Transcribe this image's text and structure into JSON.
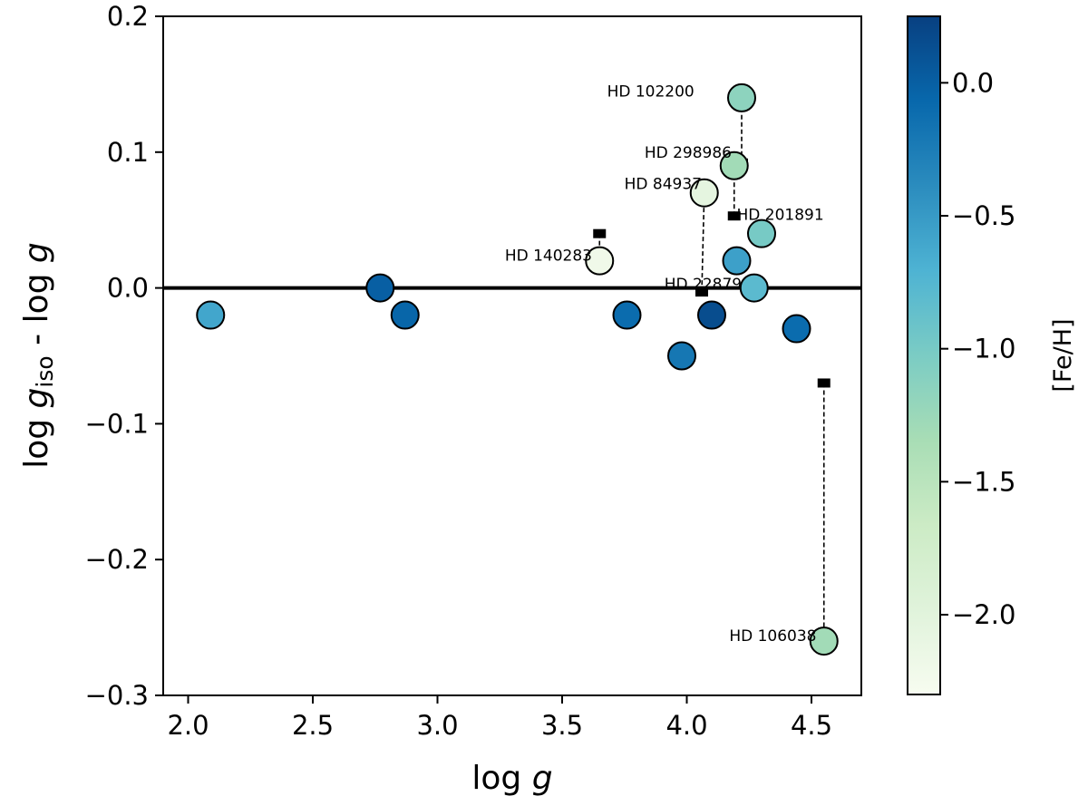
{
  "chart_data": {
    "type": "scatter",
    "title": "",
    "xlabel_parts": [
      "log ",
      "g"
    ],
    "ylabel_parts": [
      "log ",
      "g",
      "iso",
      " - log ",
      "g"
    ],
    "xlim": [
      1.9,
      4.7
    ],
    "ylim": [
      -0.3,
      0.2
    ],
    "xticks": [
      2.0,
      2.5,
      3.0,
      3.5,
      4.0,
      4.5
    ],
    "xtick_labels": [
      "2.0",
      "2.5",
      "3.0",
      "3.5",
      "4.0",
      "4.5"
    ],
    "yticks": [
      0.2,
      0.1,
      0.0,
      -0.1,
      -0.2,
      -0.3
    ],
    "ytick_labels": [
      "0.2",
      "0.1",
      "0.0",
      "−0.1",
      "−0.2",
      "−0.3"
    ],
    "reference_line_y": 0.0,
    "grid": false,
    "colorbar": {
      "label": "[Fe/H]",
      "range": [
        -2.3,
        0.25
      ],
      "ticks": [
        0.0,
        -0.5,
        -1.0,
        -1.5,
        -2.0
      ],
      "tick_labels": [
        "0.0",
        "−0.5",
        "−1.0",
        "−1.5",
        "−2.0"
      ],
      "colormap": "GnBu",
      "stops": [
        "#f7fcf0",
        "#e0f3db",
        "#ccebc5",
        "#a8ddb5",
        "#7bccc4",
        "#4eb3d3",
        "#2b8cbe",
        "#0868ac",
        "#084081"
      ]
    },
    "points": [
      {
        "x": 2.09,
        "y": -0.02,
        "feh": -0.6
      },
      {
        "x": 2.77,
        "y": 0.0,
        "feh": 0.0
      },
      {
        "x": 2.87,
        "y": -0.02,
        "feh": -0.05
      },
      {
        "x": 3.65,
        "y": 0.02,
        "feh": -2.2,
        "name": "HD 140283"
      },
      {
        "x": 3.76,
        "y": -0.02,
        "feh": -0.1
      },
      {
        "x": 3.98,
        "y": -0.05,
        "feh": -0.2
      },
      {
        "x": 4.07,
        "y": 0.07,
        "feh": -2.05,
        "name": "HD 84937"
      },
      {
        "x": 4.1,
        "y": -0.02,
        "feh": 0.15
      },
      {
        "x": 4.19,
        "y": 0.09,
        "feh": -1.3,
        "name": "HD 298986"
      },
      {
        "x": 4.2,
        "y": 0.02,
        "feh": -0.55
      },
      {
        "x": 4.22,
        "y": 0.14,
        "feh": -1.15,
        "name": "HD 102200"
      },
      {
        "x": 4.27,
        "y": 0.0,
        "feh": -0.8,
        "name": "HD 22879"
      },
      {
        "x": 4.3,
        "y": 0.04,
        "feh": -1.0,
        "name": "HD 201891"
      },
      {
        "x": 4.44,
        "y": -0.03,
        "feh": -0.1
      },
      {
        "x": 4.55,
        "y": -0.26,
        "feh": -1.3,
        "name": "HD 106038"
      }
    ],
    "markers": [
      {
        "name": "HD 140283",
        "x": 3.65,
        "y": 0.04
      },
      {
        "name": "HD 84937",
        "x": 4.06,
        "y": -0.003
      },
      {
        "name": "HD 298986",
        "x": 4.19,
        "y": 0.053
      },
      {
        "name": "HD 102200",
        "x": 4.22,
        "y": 0.092
      },
      {
        "name": "HD 201891",
        "x": 4.3,
        "y": 0.046
      },
      {
        "name": "HD 106038",
        "x": 4.55,
        "y": -0.07
      }
    ],
    "connectors": [
      {
        "name": "HD 140283",
        "x1": 3.65,
        "y1": 0.04,
        "x2": 3.65,
        "y2": 0.02
      },
      {
        "name": "HD 84937",
        "x1": 4.06,
        "y1": -0.003,
        "x2": 4.07,
        "y2": 0.07
      },
      {
        "name": "HD 298986",
        "x1": 4.19,
        "y1": 0.053,
        "x2": 4.19,
        "y2": 0.09
      },
      {
        "name": "HD 102200",
        "x1": 4.22,
        "y1": 0.092,
        "x2": 4.22,
        "y2": 0.14
      },
      {
        "name": "HD 106038",
        "x1": 4.55,
        "y1": -0.07,
        "x2": 4.55,
        "y2": -0.26
      }
    ],
    "annotations": [
      {
        "text": "HD 102200",
        "x": 4.03,
        "y": 0.145,
        "anchor": "end"
      },
      {
        "text": "HD 298986",
        "x": 4.18,
        "y": 0.1,
        "anchor": "end"
      },
      {
        "text": "HD 84937",
        "x": 4.06,
        "y": 0.077,
        "anchor": "end"
      },
      {
        "text": "HD 201891",
        "x": 4.2,
        "y": 0.054,
        "anchor": "start"
      },
      {
        "text": "HD 140283",
        "x": 3.62,
        "y": 0.024,
        "anchor": "end"
      },
      {
        "text": "HD 22879",
        "x": 3.91,
        "y": 0.003,
        "anchor": "start"
      },
      {
        "text": "HD 106038",
        "x": 4.52,
        "y": -0.256,
        "anchor": "end"
      }
    ]
  }
}
